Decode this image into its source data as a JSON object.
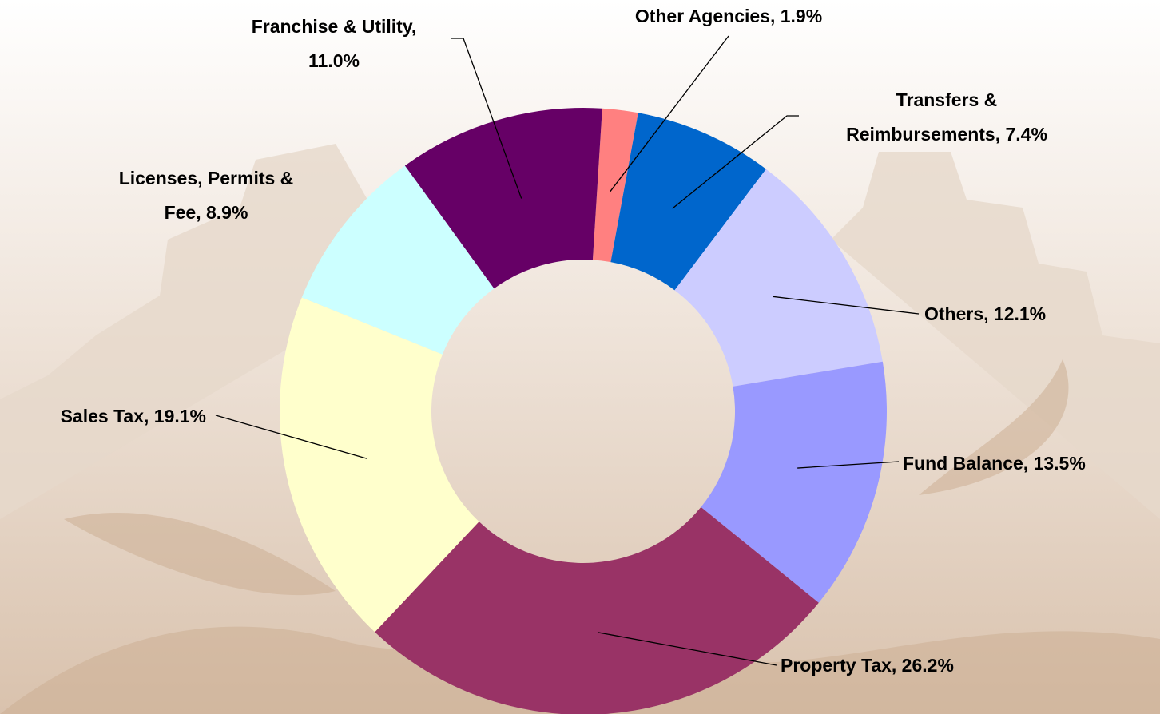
{
  "chart_data": {
    "type": "donut",
    "values": [
      1.9,
      7.4,
      12.1,
      13.5,
      26.2,
      19.1,
      8.9,
      11.0
    ],
    "value_labels": [
      "Other Agencies, 1.9%",
      "Transfers & Reimbursements, 7.4%",
      "Others, 12.1%",
      "Fund Balance, 13.5%",
      "Property Tax, 26.2%",
      "Sales Tax, 19.1%",
      "Licenses, Permits & Fee, 8.9%",
      "Franchise & Utility, 11.0%"
    ],
    "colors": [
      "#ff8080",
      "#0066cc",
      "#ccccff",
      "#9999ff",
      "#993366",
      "#ffffcc",
      "#ccffff",
      "#660066"
    ]
  }
}
